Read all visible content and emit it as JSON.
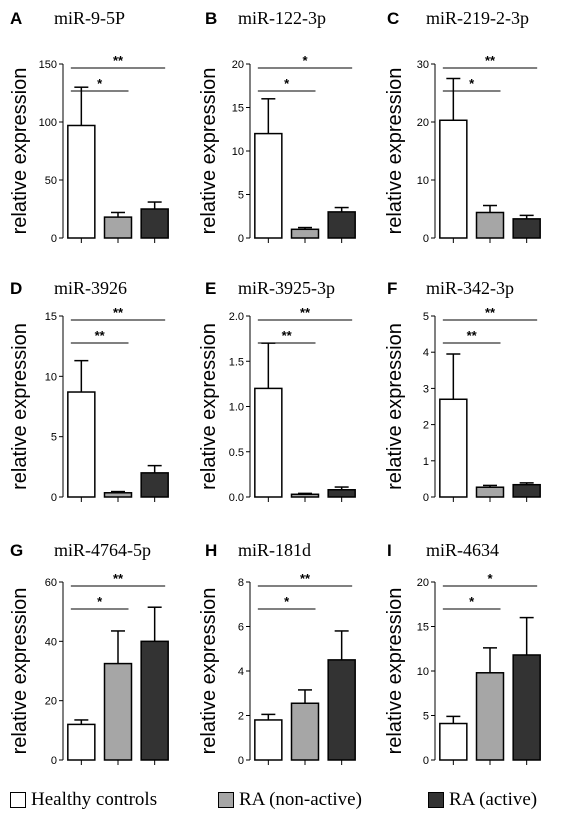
{
  "colors": {
    "healthy": "#ffffff",
    "ra_nonactive": "#a6a6a6",
    "ra_active": "#333333",
    "stroke": "#000000"
  },
  "legend": [
    {
      "label": "Healthy controls",
      "color": "#ffffff"
    },
    {
      "label": "RA (non-active)",
      "color": "#a6a6a6"
    },
    {
      "label": "RA (active)",
      "color": "#333333"
    }
  ],
  "chart_data": [
    {
      "panel": "A",
      "title": "miR-9-5P",
      "type": "bar",
      "ylabel": "relative expression",
      "ylim": [
        0,
        150
      ],
      "yticks": [
        "0",
        "50",
        "100",
        "150"
      ],
      "values": [
        97,
        18,
        25
      ],
      "errors": [
        33,
        4,
        6
      ],
      "significance": [
        {
          "from": 0,
          "to": 1,
          "label": "*"
        },
        {
          "from": 0,
          "to": 2,
          "label": "**"
        }
      ]
    },
    {
      "panel": "B",
      "title": "miR-122-3p",
      "type": "bar",
      "ylabel": "relative expression",
      "ylim": [
        0,
        20
      ],
      "yticks": [
        "0",
        "5",
        "10",
        "15",
        "20"
      ],
      "values": [
        12,
        1,
        3
      ],
      "errors": [
        4,
        0.2,
        0.5
      ],
      "significance": [
        {
          "from": 0,
          "to": 1,
          "label": "*"
        },
        {
          "from": 0,
          "to": 2,
          "label": "*"
        }
      ]
    },
    {
      "panel": "C",
      "title": "miR-219-2-3p",
      "type": "bar",
      "ylabel": "relative expression",
      "ylim": [
        0,
        30
      ],
      "yticks": [
        "0",
        "10",
        "20",
        "30"
      ],
      "values": [
        20.3,
        4.4,
        3.3
      ],
      "errors": [
        7.2,
        1.2,
        0.6
      ],
      "significance": [
        {
          "from": 0,
          "to": 1,
          "label": "*"
        },
        {
          "from": 0,
          "to": 2,
          "label": "**"
        }
      ]
    },
    {
      "panel": "D",
      "title": "miR-3926",
      "type": "bar",
      "ylabel": "relative expression",
      "ylim": [
        0,
        15
      ],
      "yticks": [
        "0",
        "5",
        "10",
        "15"
      ],
      "values": [
        8.7,
        0.35,
        2.0
      ],
      "errors": [
        2.6,
        0.1,
        0.6
      ],
      "significance": [
        {
          "from": 0,
          "to": 1,
          "label": "**"
        },
        {
          "from": 0,
          "to": 2,
          "label": "**"
        }
      ]
    },
    {
      "panel": "E",
      "title": "miR-3925-3p",
      "type": "bar",
      "ylabel": "relative expression",
      "ylim": [
        0,
        2.0
      ],
      "yticks": [
        "0.0",
        "0.5",
        "1.0",
        "1.5",
        "2.0"
      ],
      "values": [
        1.2,
        0.03,
        0.08
      ],
      "errors": [
        0.5,
        0.01,
        0.03
      ],
      "significance": [
        {
          "from": 0,
          "to": 1,
          "label": "**"
        },
        {
          "from": 0,
          "to": 2,
          "label": "**"
        }
      ]
    },
    {
      "panel": "F",
      "title": "miR-342-3p",
      "type": "bar",
      "ylabel": "relative expression",
      "ylim": [
        0,
        5
      ],
      "yticks": [
        "0",
        "1",
        "2",
        "3",
        "4",
        "5"
      ],
      "values": [
        2.7,
        0.27,
        0.34
      ],
      "errors": [
        1.25,
        0.05,
        0.05
      ],
      "significance": [
        {
          "from": 0,
          "to": 1,
          "label": "**"
        },
        {
          "from": 0,
          "to": 2,
          "label": "**"
        }
      ]
    },
    {
      "panel": "G",
      "title": "miR-4764-5p",
      "type": "bar",
      "ylabel": "relative expression",
      "ylim": [
        0,
        60
      ],
      "yticks": [
        "0",
        "20",
        "40",
        "60"
      ],
      "values": [
        12,
        32.5,
        40
      ],
      "errors": [
        1.5,
        11,
        11.5
      ],
      "significance": [
        {
          "from": 0,
          "to": 1,
          "label": "*"
        },
        {
          "from": 0,
          "to": 2,
          "label": "**"
        }
      ]
    },
    {
      "panel": "H",
      "title": "miR-181d",
      "type": "bar",
      "ylabel": "relative expression",
      "ylim": [
        0,
        8
      ],
      "yticks": [
        "0",
        "2",
        "4",
        "6",
        "8"
      ],
      "values": [
        1.8,
        2.55,
        4.5
      ],
      "errors": [
        0.25,
        0.6,
        1.3
      ],
      "significance": [
        {
          "from": 0,
          "to": 1,
          "label": "*"
        },
        {
          "from": 0,
          "to": 2,
          "label": "**"
        }
      ]
    },
    {
      "panel": "I",
      "title": "miR-4634",
      "type": "bar",
      "ylabel": "relative expression",
      "ylim": [
        0,
        20
      ],
      "yticks": [
        "0",
        "5",
        "10",
        "15",
        "20"
      ],
      "values": [
        4.1,
        9.8,
        11.8
      ],
      "errors": [
        0.8,
        2.8,
        4.2
      ],
      "significance": [
        {
          "from": 0,
          "to": 1,
          "label": "*"
        },
        {
          "from": 0,
          "to": 2,
          "label": "*"
        }
      ]
    }
  ]
}
